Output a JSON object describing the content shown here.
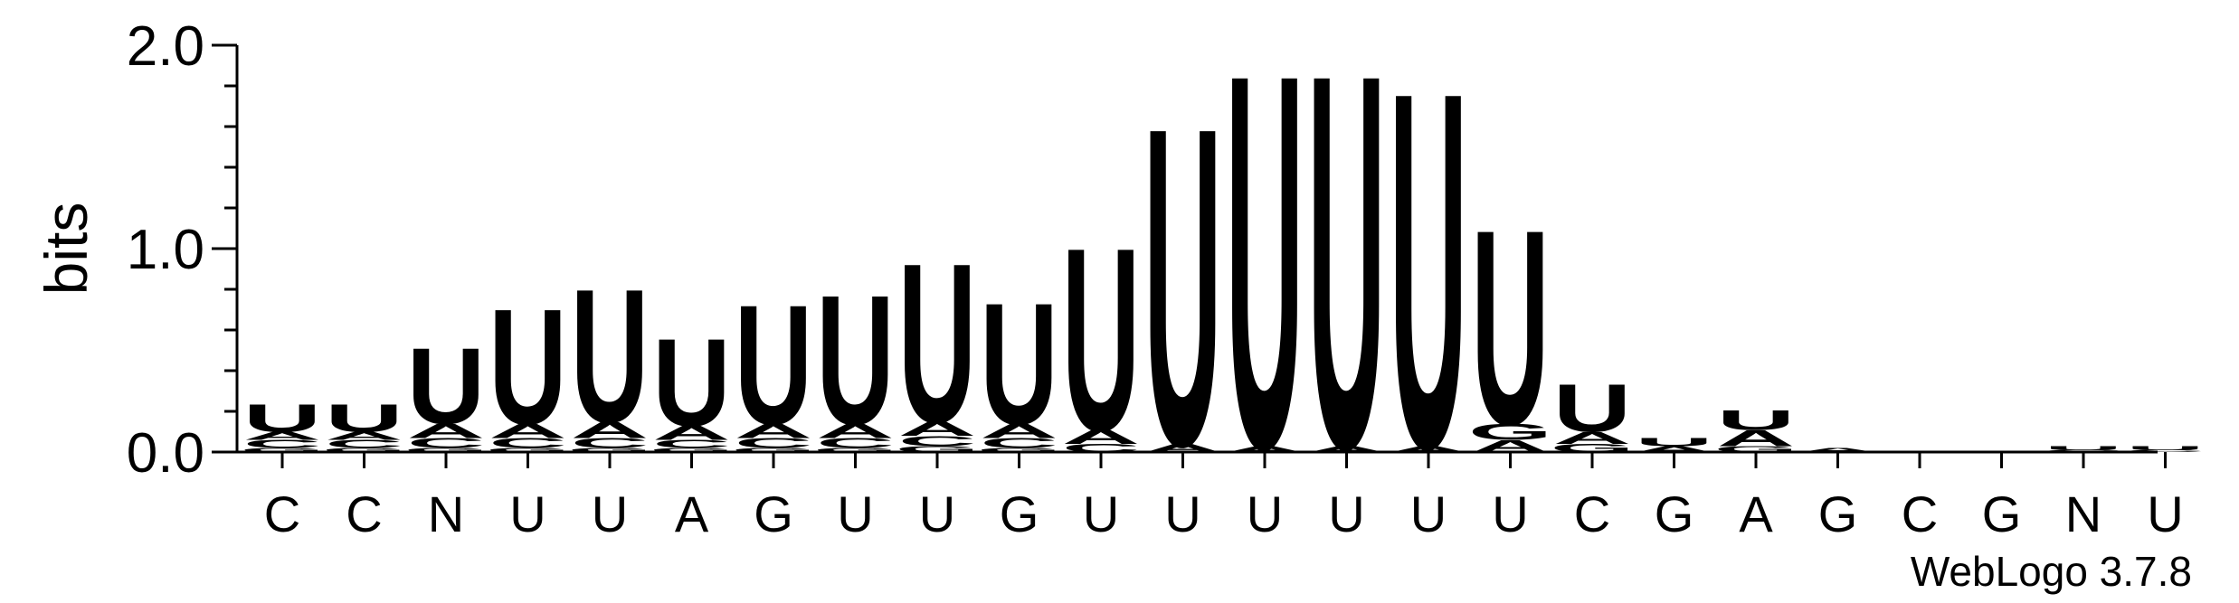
{
  "chart_data": {
    "type": "sequence-logo",
    "ylabel": "bits",
    "ylim": [
      0,
      2.0
    ],
    "yticks": [
      {
        "value": 0.0,
        "label": "0.0"
      },
      {
        "value": 1.0,
        "label": "1.0"
      },
      {
        "value": 2.0,
        "label": "2.0"
      }
    ],
    "xlabels": [
      "C",
      "C",
      "N",
      "U",
      "U",
      "A",
      "G",
      "U",
      "U",
      "G",
      "U",
      "U",
      "U",
      "U",
      "U",
      "U",
      "C",
      "G",
      "A",
      "G",
      "C",
      "G",
      "N",
      "U"
    ],
    "colors": {
      "U": "#ff8c00",
      "A": "#ff8c00",
      "C": "#0000ff",
      "G": "#0000ff"
    },
    "stacks": [
      [
        [
          "G",
          0.02
        ],
        [
          "C",
          0.04
        ],
        [
          "A",
          0.04
        ],
        [
          "U",
          0.14
        ]
      ],
      [
        [
          "G",
          0.02
        ],
        [
          "C",
          0.04
        ],
        [
          "A",
          0.04
        ],
        [
          "U",
          0.14
        ]
      ],
      [
        [
          "G",
          0.02
        ],
        [
          "C",
          0.05
        ],
        [
          "A",
          0.07
        ],
        [
          "U",
          0.38
        ]
      ],
      [
        [
          "G",
          0.02
        ],
        [
          "C",
          0.05
        ],
        [
          "A",
          0.07
        ],
        [
          "U",
          0.58
        ]
      ],
      [
        [
          "G",
          0.02
        ],
        [
          "C",
          0.05
        ],
        [
          "A",
          0.08
        ],
        [
          "U",
          0.67
        ]
      ],
      [
        [
          "G",
          0.02
        ],
        [
          "C",
          0.04
        ],
        [
          "A",
          0.07
        ],
        [
          "U",
          0.44
        ]
      ],
      [
        [
          "G",
          0.02
        ],
        [
          "C",
          0.05
        ],
        [
          "A",
          0.07
        ],
        [
          "U",
          0.6
        ]
      ],
      [
        [
          "G",
          0.02
        ],
        [
          "C",
          0.05
        ],
        [
          "A",
          0.07
        ],
        [
          "U",
          0.65
        ]
      ],
      [
        [
          "G",
          0.03
        ],
        [
          "C",
          0.05
        ],
        [
          "A",
          0.07
        ],
        [
          "U",
          0.8
        ]
      ],
      [
        [
          "G",
          0.02
        ],
        [
          "C",
          0.05
        ],
        [
          "A",
          0.07
        ],
        [
          "U",
          0.61
        ]
      ],
      [
        [
          "C",
          0.04
        ],
        [
          "A",
          0.07
        ],
        [
          "U",
          0.92
        ]
      ],
      [
        [
          "A",
          0.04
        ],
        [
          "U",
          1.6
        ]
      ],
      [
        [
          "A",
          0.03
        ],
        [
          "U",
          1.88
        ]
      ],
      [
        [
          "A",
          0.03
        ],
        [
          "U",
          1.88
        ]
      ],
      [
        [
          "A",
          0.03
        ],
        [
          "U",
          1.79
        ]
      ],
      [
        [
          "A",
          0.06
        ],
        [
          "G",
          0.08
        ],
        [
          "U",
          0.98
        ]
      ],
      [
        [
          "G",
          0.04
        ],
        [
          "A",
          0.06
        ],
        [
          "U",
          0.24
        ]
      ],
      [
        [
          "A",
          0.03
        ],
        [
          "U",
          0.04
        ]
      ],
      [
        [
          "G",
          0.03
        ],
        [
          "A",
          0.08
        ],
        [
          "U",
          0.1
        ]
      ],
      [
        [
          "A",
          0.02
        ]
      ],
      [],
      [],
      [
        [
          "C",
          0.01
        ],
        [
          "U",
          0.02
        ]
      ],
      [
        [
          "C",
          0.01
        ],
        [
          "U",
          0.02
        ]
      ]
    ]
  },
  "watermark": "WebLogo 3.7.8"
}
